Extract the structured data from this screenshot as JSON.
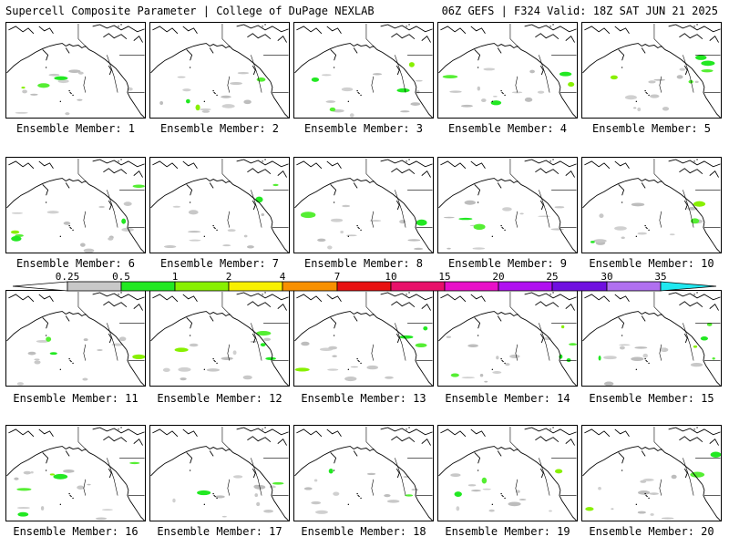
{
  "header": {
    "left": "Supercell Composite Parameter | College of DuPage NEXLAB",
    "right": "06Z GEFS | F324 Valid: 18Z SAT JUN 21 2025"
  },
  "colorbar": {
    "labels": [
      "0.25",
      "0.5",
      "1",
      "2",
      "4",
      "7",
      "10",
      "15",
      "20",
      "25",
      "30",
      "35"
    ],
    "colors": [
      "#c8c8c8",
      "#22e822",
      "#88f000",
      "#f8f000",
      "#f89000",
      "#e81010",
      "#e8106a",
      "#e810c8",
      "#b010f0",
      "#7010e0",
      "#b070f0",
      "#20e8f0"
    ]
  },
  "panels": [
    {
      "label": "Ensemble Member: 1"
    },
    {
      "label": "Ensemble Member: 2"
    },
    {
      "label": "Ensemble Member: 3"
    },
    {
      "label": "Ensemble Member: 4"
    },
    {
      "label": "Ensemble Member: 5"
    },
    {
      "label": "Ensemble Member: 6"
    },
    {
      "label": "Ensemble Member: 7"
    },
    {
      "label": "Ensemble Member: 8"
    },
    {
      "label": "Ensemble Member: 9"
    },
    {
      "label": "Ensemble Member: 10"
    },
    {
      "label": "Ensemble Member: 11"
    },
    {
      "label": "Ensemble Member: 12"
    },
    {
      "label": "Ensemble Member: 13"
    },
    {
      "label": "Ensemble Member: 14"
    },
    {
      "label": "Ensemble Member: 15"
    },
    {
      "label": "Ensemble Member: 16"
    },
    {
      "label": "Ensemble Member: 17"
    },
    {
      "label": "Ensemble Member: 18"
    },
    {
      "label": "Ensemble Member: 19"
    },
    {
      "label": "Ensemble Member: 20"
    }
  ]
}
